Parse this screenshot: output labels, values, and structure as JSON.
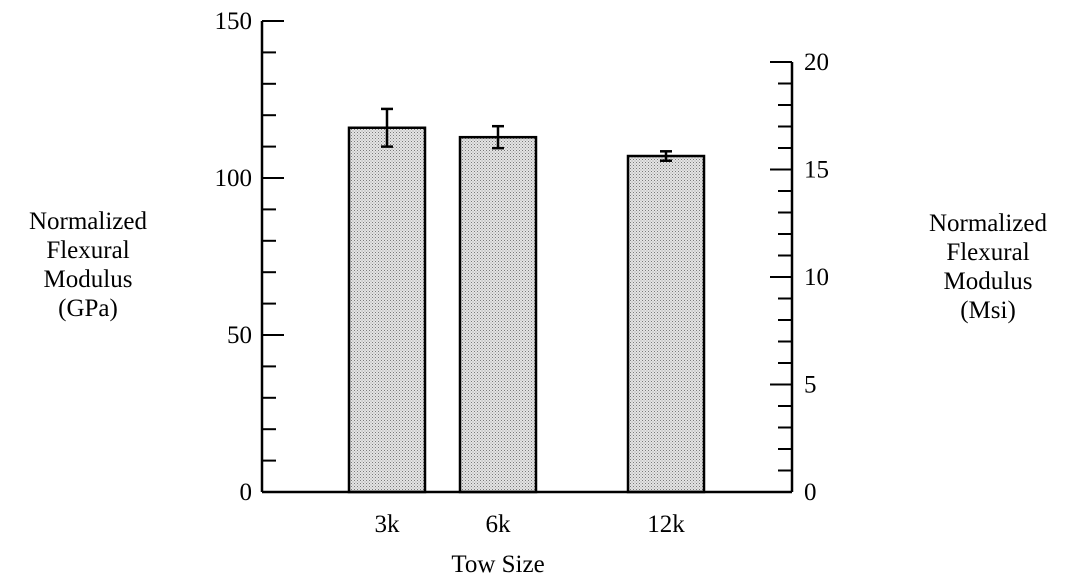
{
  "chart_data": {
    "type": "bar",
    "title": "",
    "xlabel": "Tow Size",
    "categories": [
      "3k",
      "6k",
      "12k"
    ],
    "series": [
      {
        "values": [
          116,
          113,
          107
        ],
        "error": [
          6,
          3.5,
          1.5
        ]
      }
    ],
    "y_left": {
      "label": [
        "Normalized",
        "Flexural",
        "Modulus",
        "(GPa)"
      ],
      "lim": [
        0,
        150
      ],
      "ticks": [
        0,
        50,
        100,
        150
      ],
      "minor_step": 10
    },
    "y_right": {
      "label": [
        "Normalized",
        "Flexural",
        "Modulus",
        "(Msi)"
      ],
      "lim": [
        0,
        20
      ],
      "ticks": [
        0,
        5,
        10,
        15,
        20
      ],
      "minor_step": 1
    },
    "grid": false,
    "legend": "none",
    "colors": {
      "bar_fill": "#d0d0d0",
      "bar_stroke": "#000000",
      "axis": "#000000"
    }
  }
}
